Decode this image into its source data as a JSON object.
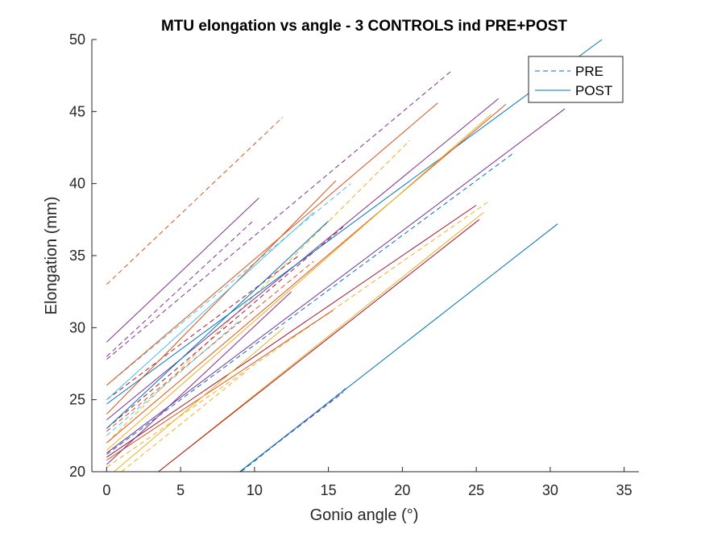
{
  "chart_data": {
    "type": "line",
    "title": "MTU elongation vs angle - 3 CONTROLS ind PRE+POST",
    "xlabel": "Gonio angle (°)",
    "ylabel": "Elongation (mm)",
    "xlim": [
      -1,
      36
    ],
    "ylim": [
      20,
      50
    ],
    "xticks": [
      "0",
      "5",
      "10",
      "15",
      "20",
      "25",
      "30",
      "35"
    ],
    "yticks": [
      "20",
      "25",
      "30",
      "35",
      "40",
      "45",
      "50"
    ],
    "grid": false,
    "legend": {
      "location": "top-right",
      "entries": [
        {
          "label": "PRE",
          "style": "dashed"
        },
        {
          "label": "POST",
          "style": "solid"
        }
      ]
    },
    "colors": [
      "#0072bd",
      "#d95319",
      "#edb120",
      "#7e2f8e",
      "#4dbeee",
      "#a2142f"
    ],
    "series": [
      {
        "group": "PRE",
        "color": "#d95319",
        "x": [
          0,
          11.9
        ],
        "y": [
          33.0,
          44.6
        ]
      },
      {
        "group": "PRE",
        "color": "#7e2f8e",
        "x": [
          0,
          23.3
        ],
        "y": [
          27.8,
          47.8
        ]
      },
      {
        "group": "PRE",
        "color": "#edb120",
        "x": [
          0,
          20.5
        ],
        "y": [
          22.0,
          43.0
        ]
      },
      {
        "group": "PRE",
        "color": "#4dbeee",
        "x": [
          0,
          16.5
        ],
        "y": [
          26.0,
          40.0
        ]
      },
      {
        "group": "PRE",
        "color": "#7e2f8e",
        "x": [
          0,
          10.0
        ],
        "y": [
          28.0,
          37.5
        ]
      },
      {
        "group": "PRE",
        "color": "#0072bd",
        "x": [
          0,
          27.5
        ],
        "y": [
          21.2,
          42.1
        ]
      },
      {
        "group": "PRE",
        "color": "#a2142f",
        "x": [
          0,
          16.0
        ],
        "y": [
          23.0,
          37.0
        ]
      },
      {
        "group": "PRE",
        "color": "#d95319",
        "x": [
          0,
          14.0
        ],
        "y": [
          22.8,
          34.6
        ]
      },
      {
        "group": "PRE",
        "color": "#edb120",
        "x": [
          0,
          25.9
        ],
        "y": [
          20.3,
          38.8
        ]
      },
      {
        "group": "PRE",
        "color": "#0072bd",
        "x": [
          9.1,
          16.2
        ],
        "y": [
          20.0,
          25.8
        ]
      },
      {
        "group": "PRE",
        "color": "#7e2f8e",
        "x": [
          9.0,
          16.0
        ],
        "y": [
          20.0,
          25.5
        ]
      },
      {
        "group": "PRE",
        "color": "#4dbeee",
        "x": [
          0,
          9.0
        ],
        "y": [
          22.5,
          30.5
        ]
      },
      {
        "group": "PRE",
        "color": "#edb120",
        "x": [
          1.0,
          9.5
        ],
        "y": [
          20.0,
          27.0
        ]
      },
      {
        "group": "PRE",
        "color": "#a2142f",
        "x": [
          0,
          13.0
        ],
        "y": [
          25.0,
          35.0
        ]
      },
      {
        "group": "POST",
        "color": "#7e2f8e",
        "x": [
          0,
          10.3
        ],
        "y": [
          29.0,
          39.0
        ]
      },
      {
        "group": "POST",
        "color": "#d95319",
        "x": [
          0,
          22.4
        ],
        "y": [
          26.0,
          45.6
        ]
      },
      {
        "group": "POST",
        "color": "#7e2f8e",
        "x": [
          0,
          26.5
        ],
        "y": [
          23.6,
          45.9
        ]
      },
      {
        "group": "POST",
        "color": "#0072bd",
        "x": [
          0,
          33.5
        ],
        "y": [
          24.7,
          50.0
        ]
      },
      {
        "group": "POST",
        "color": "#0072bd",
        "x": [
          0,
          15.0
        ],
        "y": [
          23.0,
          37.4
        ]
      },
      {
        "group": "POST",
        "color": "#d95319",
        "x": [
          0,
          15.5
        ],
        "y": [
          24.0,
          40.2
        ]
      },
      {
        "group": "POST",
        "color": "#d95319",
        "x": [
          0,
          27.0
        ],
        "y": [
          22.0,
          45.5
        ]
      },
      {
        "group": "POST",
        "color": "#edb120",
        "x": [
          0,
          26.0
        ],
        "y": [
          21.5,
          44.8
        ]
      },
      {
        "group": "POST",
        "color": "#7e2f8e",
        "x": [
          0,
          31.0
        ],
        "y": [
          21.3,
          45.2
        ]
      },
      {
        "group": "POST",
        "color": "#a2142f",
        "x": [
          0,
          25.0
        ],
        "y": [
          21.0,
          38.5
        ]
      },
      {
        "group": "POST",
        "color": "#d95319",
        "x": [
          0,
          15.3
        ],
        "y": [
          20.8,
          31.2
        ]
      },
      {
        "group": "POST",
        "color": "#edb120",
        "x": [
          3.5,
          25.5
        ],
        "y": [
          20.0,
          38.0
        ]
      },
      {
        "group": "POST",
        "color": "#a2142f",
        "x": [
          3.5,
          25.2
        ],
        "y": [
          20.0,
          37.5
        ]
      },
      {
        "group": "POST",
        "color": "#0072bd",
        "x": [
          9.0,
          30.5
        ],
        "y": [
          20.0,
          37.2
        ]
      },
      {
        "group": "POST",
        "color": "#4dbeee",
        "x": [
          0,
          14.0
        ],
        "y": [
          25.0,
          38.0
        ]
      },
      {
        "group": "POST",
        "color": "#edb120",
        "x": [
          0.5,
          12.0
        ],
        "y": [
          20.0,
          30.0
        ]
      },
      {
        "group": "POST",
        "color": "#7e2f8e",
        "x": [
          0,
          12.5
        ],
        "y": [
          20.5,
          32.5
        ]
      }
    ]
  }
}
